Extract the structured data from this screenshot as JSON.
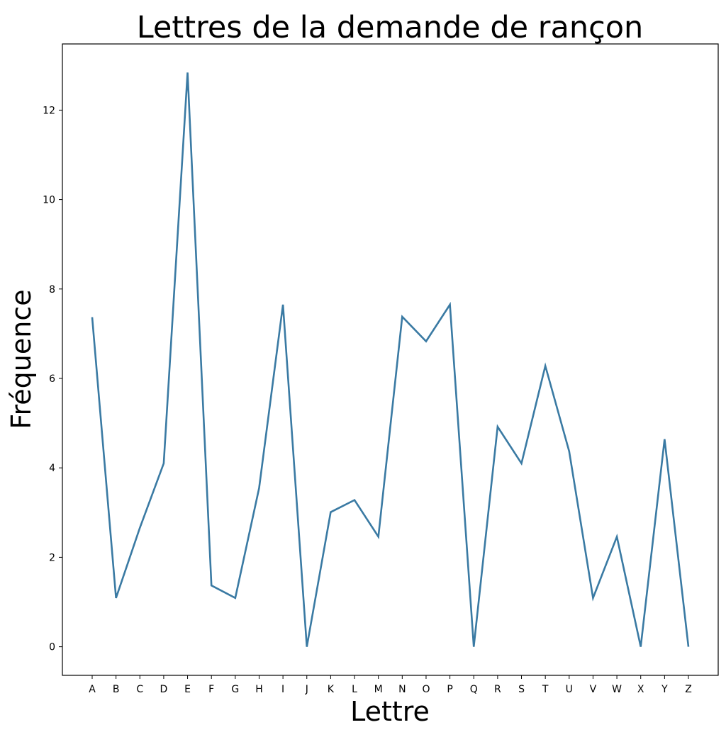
{
  "chart_data": {
    "type": "line",
    "title": "Lettres de la demande de rançon",
    "xlabel": "Lettre",
    "ylabel": "Fréquence",
    "categories": [
      "A",
      "B",
      "C",
      "D",
      "E",
      "F",
      "G",
      "H",
      "I",
      "J",
      "K",
      "L",
      "M",
      "N",
      "O",
      "P",
      "Q",
      "R",
      "S",
      "T",
      "U",
      "V",
      "W",
      "X",
      "Y",
      "Z"
    ],
    "values": [
      7.37,
      1.09,
      2.66,
      4.1,
      12.84,
      1.37,
      1.09,
      3.55,
      7.65,
      0,
      3.01,
      3.28,
      2.46,
      7.38,
      6.83,
      7.65,
      0,
      4.92,
      4.1,
      6.28,
      4.37,
      1.09,
      2.46,
      0,
      4.64,
      0
    ],
    "ylim": [
      -0.64,
      13.48
    ],
    "yticks": [
      "0",
      "2",
      "4",
      "6",
      "8",
      "10",
      "12"
    ],
    "grid": false,
    "line_color": "#3a7aa3"
  }
}
